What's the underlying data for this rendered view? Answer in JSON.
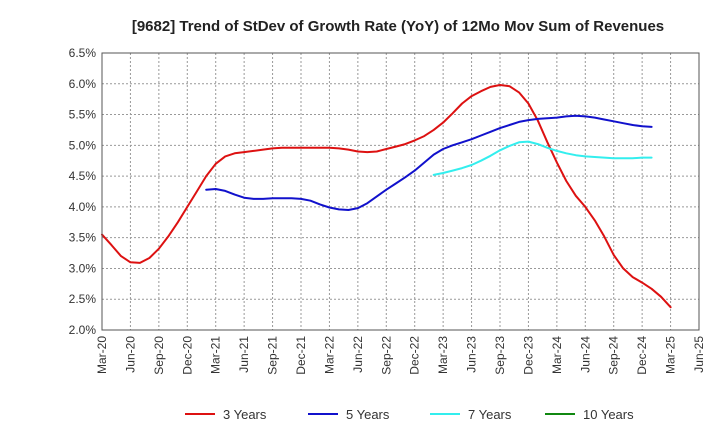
{
  "chart_data": {
    "type": "line",
    "title": "[9682]  Trend of StDev of Growth Rate (YoY) of 12Mo Mov Sum of Revenues",
    "xlabel": "",
    "ylabel": "",
    "ylim": [
      2.0,
      6.5
    ],
    "y_ticks": [
      2.0,
      2.5,
      3.0,
      3.5,
      4.0,
      4.5,
      5.0,
      5.5,
      6.0,
      6.5
    ],
    "y_tick_labels": [
      "2.0%",
      "2.5%",
      "3.0%",
      "3.5%",
      "4.0%",
      "4.5%",
      "5.0%",
      "5.5%",
      "6.0%",
      "6.5%"
    ],
    "x_tick_labels": [
      "Mar-20",
      "Jun-20",
      "Sep-20",
      "Dec-20",
      "Mar-21",
      "Jun-21",
      "Sep-21",
      "Dec-21",
      "Mar-22",
      "Jun-22",
      "Sep-22",
      "Dec-22",
      "Mar-23",
      "Jun-23",
      "Sep-23",
      "Dec-23",
      "Mar-24",
      "Jun-24",
      "Sep-24",
      "Dec-24",
      "Mar-25",
      "Jun-25"
    ],
    "x_range_months": [
      0,
      63
    ],
    "grid": true,
    "legend_position": "bottom",
    "series": [
      {
        "name": "3 Years",
        "color": "#dd1111",
        "start_month": 0,
        "values": [
          3.55,
          3.38,
          3.2,
          3.1,
          3.09,
          3.17,
          3.32,
          3.52,
          3.75,
          4.0,
          4.25,
          4.5,
          4.7,
          4.82,
          4.87,
          4.89,
          4.91,
          4.93,
          4.95,
          4.96,
          4.96,
          4.96,
          4.96,
          4.96,
          4.96,
          4.95,
          4.93,
          4.9,
          4.89,
          4.9,
          4.94,
          4.98,
          5.02,
          5.08,
          5.15,
          5.25,
          5.37,
          5.52,
          5.68,
          5.8,
          5.88,
          5.95,
          5.98,
          5.96,
          5.86,
          5.68,
          5.4,
          5.05,
          4.72,
          4.42,
          4.18,
          4.0,
          3.78,
          3.52,
          3.22,
          3.0,
          2.86,
          2.77,
          2.67,
          2.54,
          2.37
        ]
      },
      {
        "name": "5 Years",
        "color": "#1111cc",
        "start_month": 11,
        "values": [
          4.28,
          4.29,
          4.26,
          4.2,
          4.15,
          4.13,
          4.13,
          4.14,
          4.14,
          4.14,
          4.13,
          4.1,
          4.04,
          3.99,
          3.96,
          3.95,
          3.98,
          4.06,
          4.17,
          4.28,
          4.38,
          4.48,
          4.59,
          4.72,
          4.85,
          4.94,
          5.0,
          5.05,
          5.1,
          5.16,
          5.22,
          5.28,
          5.33,
          5.38,
          5.41,
          5.43,
          5.44,
          5.45,
          5.47,
          5.48,
          5.47,
          5.45,
          5.42,
          5.39,
          5.36,
          5.33,
          5.31,
          5.3
        ]
      },
      {
        "name": "7 Years",
        "color": "#33eeee",
        "start_month": 35,
        "values": [
          4.52,
          4.55,
          4.59,
          4.63,
          4.68,
          4.75,
          4.83,
          4.92,
          4.99,
          5.05,
          5.06,
          5.02,
          4.96,
          4.91,
          4.87,
          4.84,
          4.82,
          4.81,
          4.8,
          4.79,
          4.79,
          4.79,
          4.8,
          4.8
        ]
      },
      {
        "name": "10 Years",
        "color": "#118811",
        "start_month": 0,
        "values": []
      }
    ]
  }
}
